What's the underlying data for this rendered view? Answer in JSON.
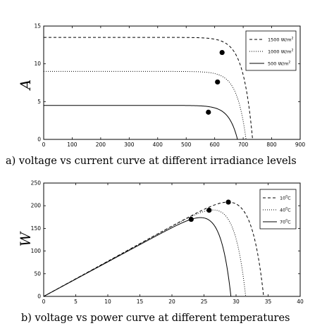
{
  "chart_data": [
    {
      "type": "line",
      "ylabel": "A",
      "xlabel": "",
      "caption": "a) voltage vs current curve at different irradiance levels",
      "xlim": [
        0,
        900
      ],
      "ylim": [
        0,
        15
      ],
      "xticks": [
        "0",
        "100",
        "200",
        "300",
        "400",
        "500",
        "600",
        "700",
        "800",
        "900"
      ],
      "yticks": [
        "0",
        "5",
        "10",
        "15"
      ],
      "legend_position": "top-right",
      "series": [
        {
          "name": "1500 W/m²",
          "style": "dashed",
          "isc": 13.5,
          "voc": 733,
          "mpp": [
            626,
            11.5
          ]
        },
        {
          "name": "1000 W/m²",
          "style": "dotted",
          "isc": 9.0,
          "voc": 710,
          "mpp": [
            610,
            7.6
          ]
        },
        {
          "name": "500 W/m²",
          "style": "solid",
          "isc": 4.5,
          "voc": 680,
          "mpp": [
            578,
            3.6
          ]
        }
      ]
    },
    {
      "type": "line",
      "ylabel": "W",
      "xlabel": "",
      "caption": "b) voltage vs power curve at different temperatures",
      "xlim": [
        0,
        40
      ],
      "ylim": [
        0,
        250
      ],
      "xticks": [
        "0",
        "5",
        "10",
        "15",
        "20",
        "25",
        "30",
        "35",
        "40"
      ],
      "yticks": [
        "0",
        "50",
        "100",
        "150",
        "200",
        "250"
      ],
      "legend_position": "top-right",
      "series": [
        {
          "name": "10°C",
          "style": "dashed",
          "isc": 8.2,
          "voc": 34.3,
          "mpp": [
            28.8,
            208
          ]
        },
        {
          "name": "40°C",
          "style": "dotted",
          "isc": 8.2,
          "voc": 31.5,
          "mpp": [
            25.8,
            190
          ]
        },
        {
          "name": "70°C",
          "style": "solid",
          "isc": 8.2,
          "voc": 29.2,
          "mpp": [
            23.0,
            170
          ]
        }
      ]
    }
  ],
  "legend": {
    "top": [
      {
        "value": "1500 W/m",
        "sup": "2"
      },
      {
        "value": "1000 W/m",
        "sup": "2"
      },
      {
        "value": "500 W/m",
        "sup": "2"
      }
    ],
    "bottom": [
      {
        "value": "10",
        "sup": "0",
        "unit": "C"
      },
      {
        "value": "40",
        "sup": "0",
        "unit": "C"
      },
      {
        "value": "70",
        "sup": "0",
        "unit": "C"
      }
    ]
  }
}
